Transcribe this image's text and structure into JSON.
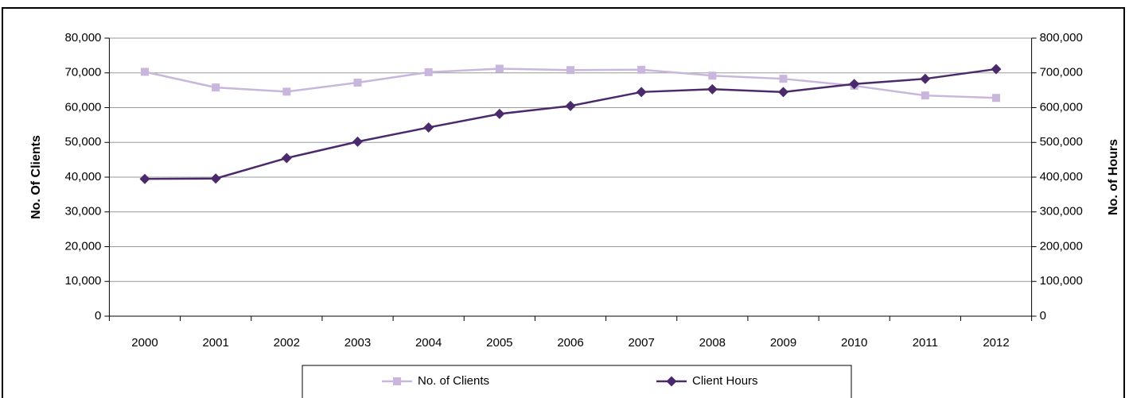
{
  "chart_data": {
    "type": "line",
    "categories": [
      "2000",
      "2001",
      "2002",
      "2003",
      "2004",
      "2005",
      "2006",
      "2007",
      "2008",
      "2009",
      "2010",
      "2011",
      "2012"
    ],
    "ylabel": "No. Of Clients",
    "y2label": "No. of Hours",
    "ylim": [
      0,
      80000
    ],
    "yticks": [
      0,
      {
        "value": 10000,
        "label": "10,000"
      },
      {
        "value": 20000,
        "label": "20,000"
      },
      {
        "value": 30000,
        "label": "30,000"
      },
      {
        "value": 40000,
        "label": "40,000"
      },
      {
        "value": 50000,
        "label": "50,000"
      },
      {
        "value": 60000,
        "label": "60,000"
      },
      {
        "value": 70000,
        "label": "70,000"
      },
      {
        "value": 80000,
        "label": "80,000"
      }
    ],
    "y2lim": [
      0,
      800000
    ],
    "y2ticks": [
      0,
      {
        "value": 100000,
        "label": "100,000"
      },
      {
        "value": 200000,
        "label": "200,000"
      },
      {
        "value": 300000,
        "label": "300,000"
      },
      {
        "value": 400000,
        "label": "400,000"
      },
      {
        "value": 500000,
        "label": "500,000"
      },
      {
        "value": 600000,
        "label": "600,000"
      },
      {
        "value": 700000,
        "label": "700,000"
      },
      {
        "value": 800000,
        "label": "800,000"
      }
    ],
    "grid": true,
    "legend": "bottom",
    "series": [
      {
        "name": "No. of Clients",
        "color": "#c9b6dd",
        "marker": "square",
        "values": [
          70300,
          65800,
          64600,
          67200,
          70200,
          71200,
          70800,
          70900,
          69200,
          68300,
          66300,
          63500,
          62800
        ]
      },
      {
        "name": "Client Hours",
        "color": "#4b2a6b",
        "marker": "diamond",
        "axis": "y2",
        "values": [
          395000,
          396000,
          455000,
          502000,
          543000,
          582000,
          605000,
          645000,
          653000,
          645000,
          668000,
          683000,
          711000
        ]
      }
    ]
  }
}
